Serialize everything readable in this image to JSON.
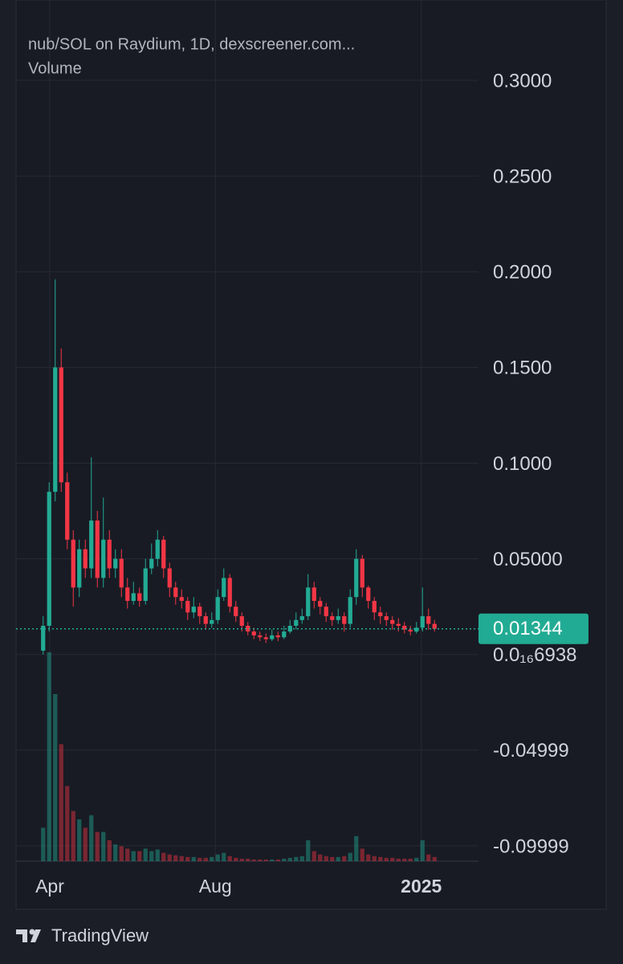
{
  "chart_data": {
    "type": "candlestick",
    "title": "nub/SOL on Raydium, 1D, dexscreener.com...",
    "subtitle": "Volume",
    "categories": [
      null,
      null,
      null,
      null,
      null,
      null,
      null,
      null,
      null,
      null,
      null,
      null,
      null,
      null,
      null,
      null,
      null,
      null,
      null,
      null,
      null,
      null,
      null,
      null,
      null,
      null,
      null,
      null,
      null,
      null,
      null,
      null,
      null,
      null,
      null,
      null,
      null,
      null,
      null,
      null,
      null,
      null,
      null,
      null,
      null,
      null,
      null,
      null,
      null,
      null,
      null,
      null,
      null,
      null,
      null,
      null,
      null,
      null,
      null,
      null,
      null,
      null,
      null,
      null,
      null,
      null
    ],
    "open": [
      0.002,
      0.015,
      0.085,
      0.15,
      0.09,
      0.06,
      0.035,
      0.055,
      0.045,
      0.07,
      0.04,
      0.06,
      0.045,
      0.05,
      0.035,
      0.028,
      0.032,
      0.028,
      0.045,
      0.05,
      0.06,
      0.045,
      0.035,
      0.03,
      0.028,
      0.022,
      0.025,
      0.02,
      0.016,
      0.018,
      0.03,
      0.04,
      0.025,
      0.02,
      0.015,
      0.012,
      0.01,
      0.009,
      0.008,
      0.01,
      0.009,
      0.012,
      0.015,
      0.018,
      0.02,
      0.035,
      0.028,
      0.025,
      0.02,
      0.018,
      0.02,
      0.016,
      0.03,
      0.05,
      0.035,
      0.028,
      0.022,
      0.02,
      0.018,
      0.016,
      0.015,
      0.013,
      0.012,
      0.014,
      0.02,
      0.016
    ],
    "high": [
      0.02,
      0.09,
      0.196,
      0.16,
      0.095,
      0.065,
      0.06,
      0.06,
      0.103,
      0.075,
      0.082,
      0.065,
      0.055,
      0.055,
      0.04,
      0.038,
      0.035,
      0.05,
      0.058,
      0.065,
      0.062,
      0.048,
      0.038,
      0.034,
      0.03,
      0.03,
      0.027,
      0.022,
      0.022,
      0.034,
      0.045,
      0.042,
      0.028,
      0.022,
      0.017,
      0.014,
      0.012,
      0.011,
      0.013,
      0.012,
      0.015,
      0.018,
      0.022,
      0.024,
      0.042,
      0.038,
      0.03,
      0.027,
      0.022,
      0.024,
      0.022,
      0.034,
      0.055,
      0.052,
      0.036,
      0.03,
      0.025,
      0.022,
      0.02,
      0.019,
      0.017,
      0.015,
      0.017,
      0.035,
      0.024,
      0.018
    ],
    "low": [
      0,
      0.012,
      0.08,
      0.085,
      0.055,
      0.025,
      0.03,
      0.04,
      0.04,
      0.035,
      0.035,
      0.04,
      0.04,
      0.03,
      0.024,
      0.026,
      0.025,
      0.026,
      0.042,
      0.046,
      0.04,
      0.03,
      0.026,
      0.024,
      0.018,
      0.019,
      0.016,
      0.013,
      0.014,
      0.016,
      0.028,
      0.022,
      0.017,
      0.012,
      0.01,
      0.008,
      0.007,
      0.006,
      0.007,
      0.007,
      0.008,
      0.011,
      0.013,
      0.016,
      0.018,
      0.024,
      0.021,
      0.017,
      0.015,
      0.016,
      0.012,
      0.014,
      0.026,
      0.03,
      0.024,
      0.018,
      0.016,
      0.015,
      0.013,
      0.012,
      0.011,
      0.01,
      0.011,
      0.012,
      0.013,
      0.012
    ],
    "close": [
      0.015,
      0.085,
      0.15,
      0.09,
      0.06,
      0.035,
      0.055,
      0.045,
      0.07,
      0.04,
      0.06,
      0.045,
      0.05,
      0.035,
      0.028,
      0.032,
      0.028,
      0.045,
      0.05,
      0.06,
      0.045,
      0.035,
      0.03,
      0.028,
      0.022,
      0.025,
      0.02,
      0.016,
      0.018,
      0.03,
      0.04,
      0.025,
      0.02,
      0.015,
      0.012,
      0.01,
      0.009,
      0.008,
      0.01,
      0.009,
      0.012,
      0.015,
      0.018,
      0.02,
      0.035,
      0.028,
      0.025,
      0.02,
      0.018,
      0.02,
      0.016,
      0.03,
      0.05,
      0.035,
      0.028,
      0.022,
      0.02,
      0.018,
      0.016,
      0.015,
      0.013,
      0.012,
      0.014,
      0.02,
      0.016,
      0.01344
    ],
    "volume": [
      40,
      250,
      200,
      140,
      90,
      60,
      50,
      40,
      55,
      35,
      35,
      25,
      20,
      18,
      15,
      12,
      12,
      15,
      12,
      14,
      10,
      8,
      7,
      6,
      5,
      5,
      4,
      4,
      5,
      8,
      10,
      6,
      4,
      3,
      3,
      2,
      2,
      2,
      2,
      2,
      3,
      4,
      5,
      6,
      25,
      12,
      8,
      6,
      5,
      5,
      6,
      10,
      30,
      15,
      8,
      6,
      5,
      4,
      4,
      3,
      3,
      3,
      4,
      25,
      8,
      5
    ],
    "up_color": "#22ab94",
    "down_color": "#f23645",
    "ylim": [
      -0.108,
      0.342
    ],
    "yticks": [
      {
        "value": 0.3,
        "label": "0.3000"
      },
      {
        "value": 0.25,
        "label": "0.2500"
      },
      {
        "value": 0.2,
        "label": "0.2000"
      },
      {
        "value": 0.15,
        "label": "0.1500"
      },
      {
        "value": 0.1,
        "label": "0.1000"
      },
      {
        "value": 0.05,
        "label": "0.05000"
      },
      {
        "value": 6.938e-17,
        "label": "0.0₁₆6938"
      },
      -0.04999,
      -0.09999
    ],
    "xticks": [
      {
        "value": 1.1,
        "label": "Apr"
      },
      {
        "value": 28.6,
        "label": "Aug"
      },
      {
        "value": 62.8,
        "label": "2025"
      }
    ],
    "last_price": 0.01344,
    "grid": true
  },
  "brand": "TradingView"
}
